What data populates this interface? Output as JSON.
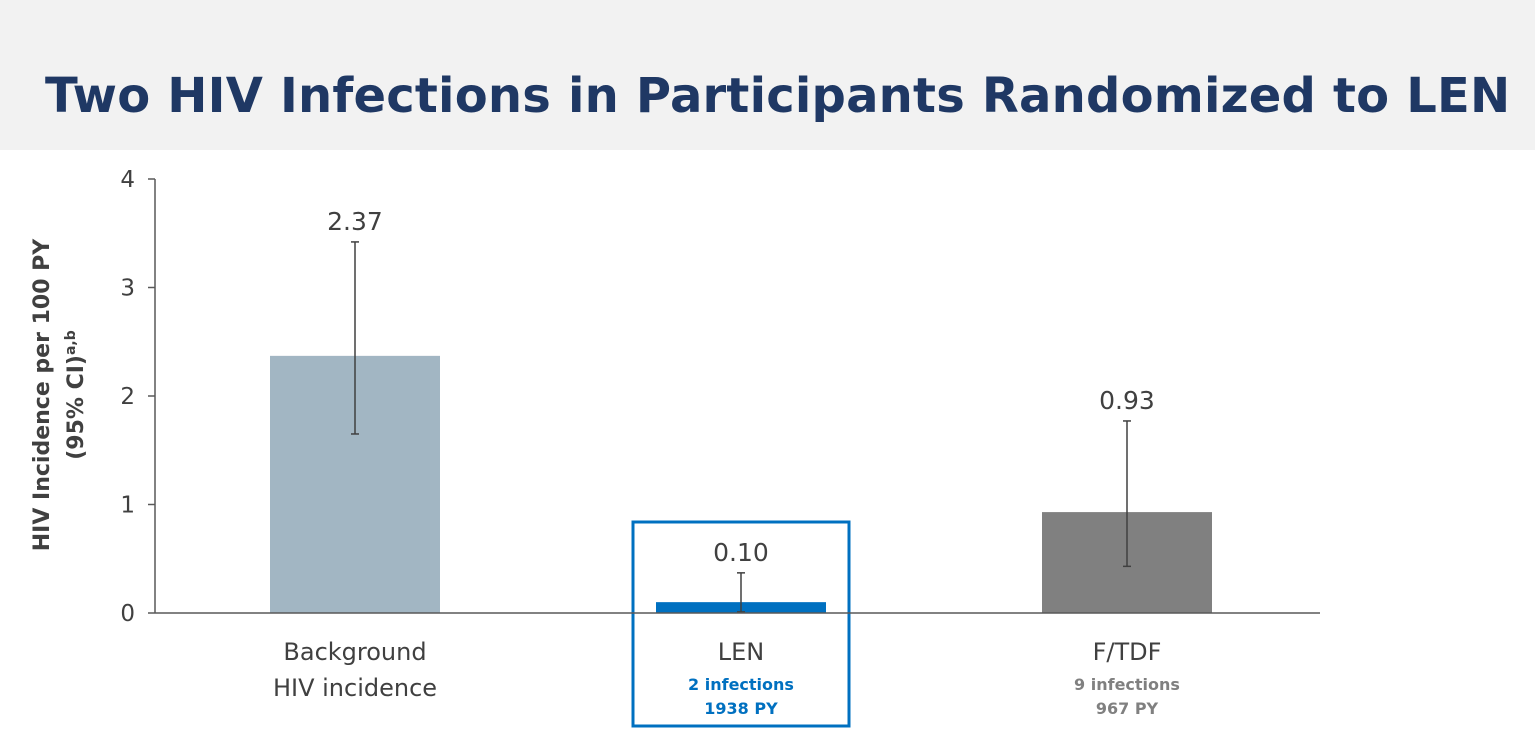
{
  "slide": {
    "title": "Two HIV Infections in Participants Randomized to LEN"
  },
  "chart_data": {
    "type": "bar",
    "ylabel_line1": "HIV Incidence per 100 PY",
    "ylabel_line2": "(95% CI)",
    "ylabel_superscript": "a,b",
    "ylim": [
      0,
      4
    ],
    "yticks": [
      0,
      1,
      2,
      3,
      4
    ],
    "grid": false,
    "categories": [
      {
        "label_lines": [
          "Background",
          "HIV incidence"
        ],
        "value": 2.37,
        "value_label": "2.37",
        "ci": [
          1.65,
          3.42
        ],
        "color": "#a2b6c3",
        "sub_lines": [],
        "highlighted": false
      },
      {
        "label_lines": [
          "LEN"
        ],
        "value": 0.1,
        "value_label": "0.10",
        "ci": [
          0.01,
          0.37
        ],
        "color": "#0070c0",
        "sub_lines": [
          "2 infections",
          "1938 PY"
        ],
        "sub_color": "#0070c0",
        "highlighted": true
      },
      {
        "label_lines": [
          "F/TDF"
        ],
        "value": 0.93,
        "value_label": "0.93",
        "ci": [
          0.43,
          1.77
        ],
        "color": "#808080",
        "sub_lines": [
          "9 infections",
          "967 PY"
        ],
        "sub_color": "#808080",
        "highlighted": false
      }
    ]
  }
}
